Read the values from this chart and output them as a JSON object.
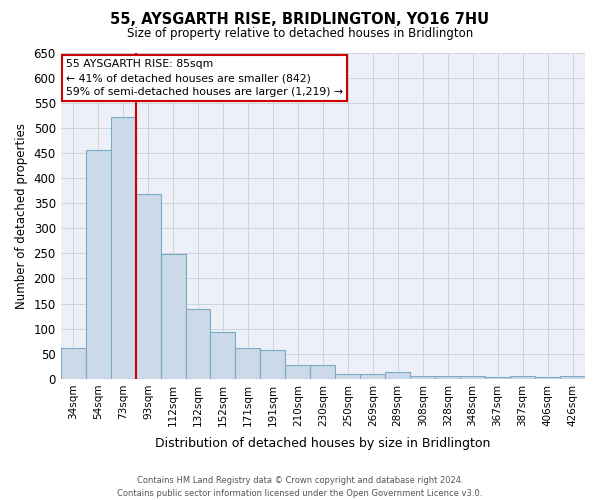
{
  "title": "55, AYSGARTH RISE, BRIDLINGTON, YO16 7HU",
  "subtitle": "Size of property relative to detached houses in Bridlington",
  "xlabel": "Distribution of detached houses by size in Bridlington",
  "ylabel": "Number of detached properties",
  "bin_labels": [
    "34sqm",
    "54sqm",
    "73sqm",
    "93sqm",
    "112sqm",
    "132sqm",
    "152sqm",
    "171sqm",
    "191sqm",
    "210sqm",
    "230sqm",
    "250sqm",
    "269sqm",
    "289sqm",
    "308sqm",
    "328sqm",
    "348sqm",
    "367sqm",
    "387sqm",
    "406sqm",
    "426sqm"
  ],
  "bar_heights": [
    62,
    456,
    521,
    368,
    248,
    140,
    93,
    62,
    57,
    27,
    27,
    10,
    10,
    13,
    5,
    5,
    5,
    3,
    5,
    3,
    5
  ],
  "bar_color": "#ccd9e8",
  "bar_edge_color": "#7aaac8",
  "ylim": [
    0,
    650
  ],
  "yticks": [
    0,
    50,
    100,
    150,
    200,
    250,
    300,
    350,
    400,
    450,
    500,
    550,
    600,
    650
  ],
  "vline_x_idx": 2.5,
  "vline_color": "#cc0000",
  "annotation_title": "55 AYSGARTH RISE: 85sqm",
  "annotation_line1": "← 41% of detached houses are smaller (842)",
  "annotation_line2": "59% of semi-detached houses are larger (1,219) →",
  "annotation_box_color": "#ffffff",
  "annotation_box_edge": "#cc0000",
  "footer1": "Contains HM Land Registry data © Crown copyright and database right 2024.",
  "footer2": "Contains public sector information licensed under the Open Government Licence v3.0.",
  "background_color": "#ffffff",
  "grid_color": "#c8d0dc",
  "plot_bg_color": "#edf1f7"
}
